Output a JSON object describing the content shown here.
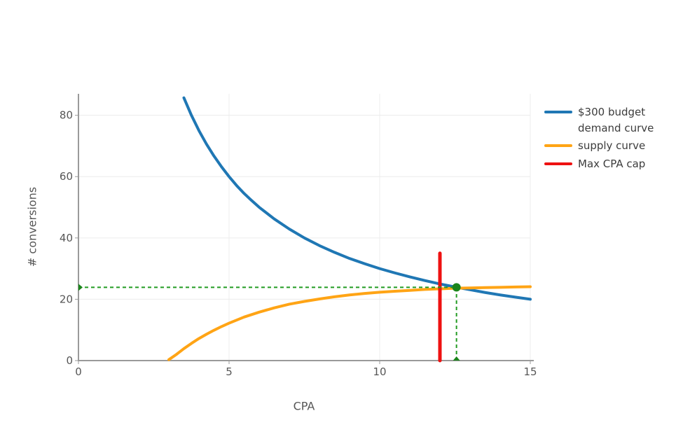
{
  "chart_data": {
    "type": "line",
    "title": "",
    "xlabel": "CPA",
    "ylabel": "# conversions",
    "xlim": [
      0,
      15
    ],
    "ylim": [
      0,
      87
    ],
    "xticks": [
      0,
      5,
      10,
      15
    ],
    "yticks": [
      0,
      20,
      40,
      60,
      80
    ],
    "grid": true,
    "legend_position": "right",
    "colors": {
      "demand": "#1f77b4",
      "supply": "#ffa415",
      "cap": "#ee1111",
      "guide_green": "#229b22",
      "marker_green": "#1b851b",
      "axis": "#9a9a9a",
      "gridline": "#ececec",
      "tick_text": "#565656",
      "legend_text": "#3c3c3c"
    },
    "series": [
      {
        "name": "$300 budget\n demand curve",
        "color": "#1f77b4",
        "width": 4,
        "x": [
          3.5,
          3.75,
          4,
          4.25,
          4.5,
          4.75,
          5,
          5.25,
          5.5,
          5.75,
          6,
          6.5,
          7,
          7.5,
          8,
          8.5,
          9,
          9.5,
          10,
          10.5,
          11,
          11.5,
          12,
          12.5,
          13,
          13.5,
          14,
          14.5,
          15
        ],
        "y": [
          85.7,
          80,
          75,
          70.6,
          66.7,
          63.2,
          60,
          57.1,
          54.5,
          52.2,
          50,
          46.2,
          42.9,
          40,
          37.5,
          35.3,
          33.3,
          31.6,
          30,
          28.6,
          27.3,
          26.1,
          25,
          24,
          23.1,
          22.2,
          21.4,
          20.7,
          20
        ]
      },
      {
        "name": "supply curve",
        "color": "#ffa415",
        "width": 4,
        "x": [
          3,
          3.25,
          3.5,
          3.75,
          4,
          4.25,
          4.5,
          4.75,
          5,
          5.5,
          6,
          6.5,
          7,
          7.5,
          8,
          8.5,
          9,
          9.5,
          10,
          10.5,
          11,
          11.5,
          12,
          12.5,
          13,
          13.5,
          14,
          14.5,
          15
        ],
        "y": [
          0.3,
          2,
          3.9,
          5.6,
          7.2,
          8.6,
          9.9,
          11.1,
          12.2,
          14.2,
          15.8,
          17.2,
          18.4,
          19.3,
          20.1,
          20.8,
          21.4,
          21.9,
          22.3,
          22.6,
          22.9,
          23.2,
          23.4,
          23.6,
          23.7,
          23.8,
          23.9,
          24,
          24.1
        ]
      },
      {
        "name": "Max CPA cap",
        "color": "#ee1111",
        "width": 5,
        "x": [
          12,
          12
        ],
        "y": [
          0,
          35
        ]
      }
    ],
    "annotations": {
      "equilibrium": {
        "point": {
          "x": 12.55,
          "y": 23.9
        },
        "hline_from_x": 0,
        "vline_to_y": 0,
        "dash": [
          5,
          4
        ],
        "line_color": "#229b22",
        "marker_color": "#1b851b",
        "point_radius": 6
      }
    }
  }
}
